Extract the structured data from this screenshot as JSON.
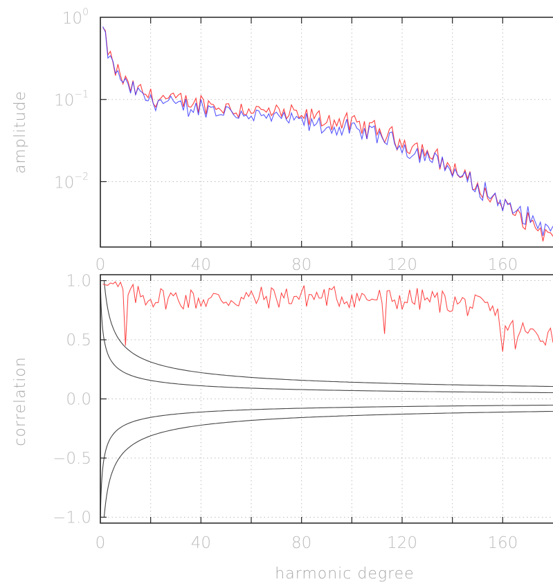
{
  "chart_data": [
    {
      "type": "line",
      "ylabel": "amplitude",
      "xlabel": "",
      "yscale": "log",
      "xlim": [
        0,
        180
      ],
      "ylim": [
        0.0016,
        1.0
      ],
      "x_ticks": [
        "0",
        "40",
        "80",
        "120",
        "160"
      ],
      "y_ticks": [
        {
          "base": "10",
          "exp": "0",
          "value": 1.0
        },
        {
          "base": "10",
          "exp": "−1",
          "value": 0.1
        },
        {
          "base": "10",
          "exp": "−2",
          "value": 0.01
        }
      ],
      "grid": true,
      "colors": {
        "red": "#ff3b3b",
        "blue": "#3a3aff",
        "black": "#333333"
      },
      "series_keypoints": {
        "x": [
          1,
          3,
          5,
          8,
          12,
          20,
          30,
          40,
          50,
          60,
          70,
          80,
          90,
          100,
          110,
          120,
          130,
          140,
          150,
          160,
          170,
          180
        ],
        "red": [
          0.72,
          0.38,
          0.26,
          0.19,
          0.14,
          0.11,
          0.095,
          0.09,
          0.08,
          0.075,
          0.068,
          0.062,
          0.057,
          0.05,
          0.042,
          0.031,
          0.023,
          0.0145,
          0.0085,
          0.0052,
          0.0033,
          0.002
        ],
        "blue": [
          0.7,
          0.36,
          0.25,
          0.18,
          0.13,
          0.1,
          0.085,
          0.078,
          0.07,
          0.065,
          0.058,
          0.052,
          0.047,
          0.042,
          0.036,
          0.027,
          0.021,
          0.0135,
          0.0085,
          0.0055,
          0.0037,
          0.0024
        ]
      }
    },
    {
      "type": "line",
      "ylabel": "correlation",
      "xlabel": "harmonic degree",
      "xlim": [
        0,
        180
      ],
      "ylim": [
        -1.05,
        1.05
      ],
      "x_ticks": [
        "0",
        "40",
        "80",
        "120",
        "160"
      ],
      "y_ticks": [
        {
          "label": "1.0",
          "value": 1.0
        },
        {
          "label": "0.5",
          "value": 0.5
        },
        {
          "label": "0.0",
          "value": 0.0
        },
        {
          "label": "−0.5",
          "value": -0.5
        },
        {
          "label": "−1.0",
          "value": -1.0
        }
      ],
      "grid": true,
      "series_keypoints": {
        "x": [
          1,
          5,
          10,
          20,
          40,
          60,
          80,
          100,
          115,
          130,
          145,
          155,
          160,
          170,
          180
        ],
        "red": [
          0.98,
          0.97,
          0.88,
          0.86,
          0.84,
          0.85,
          0.87,
          0.86,
          0.84,
          0.84,
          0.8,
          0.75,
          0.65,
          0.55,
          0.55
        ]
      },
      "bound_curves": [
        "1/sqrt(2l+1)",
        "2/sqrt(2l+1)",
        "-1/sqrt(2l+1)",
        "-2/sqrt(2l+1)"
      ]
    }
  ]
}
